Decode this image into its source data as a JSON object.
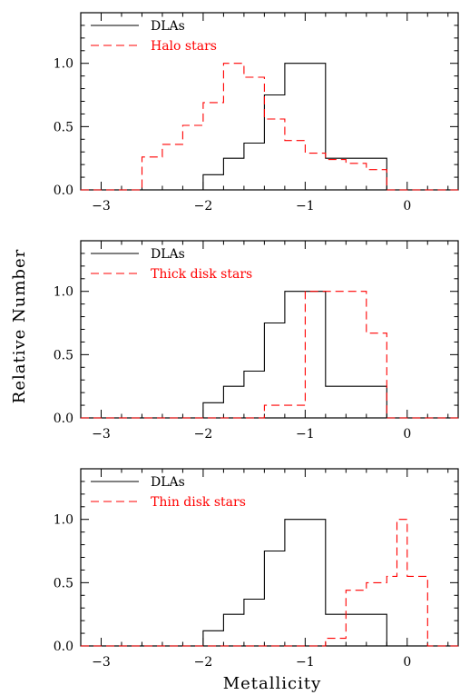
{
  "chart_data": {
    "type": "histogram",
    "ylabel": "Relative Number",
    "xlabel": "Metallicity",
    "xlim": [
      -3.2,
      0.5
    ],
    "ylim": [
      0,
      1.4
    ],
    "x_ticks": [
      -3,
      -2,
      -1,
      0
    ],
    "x_tick_labels": [
      "−3",
      "−2",
      "−1",
      "0"
    ],
    "y_ticks": [
      0,
      0.5,
      1.0
    ],
    "y_tick_labels": [
      "0.0",
      "0.5",
      "1.0"
    ],
    "legend_position": "top-left",
    "colors": {
      "dlas": "#000000",
      "stars": "#ff0000"
    },
    "panels": [
      {
        "series": [
          {
            "name": "DLAs",
            "style": "solid",
            "color": "#000000",
            "bin_edges": [
              -3.2,
              -2.0,
              -1.8,
              -1.6,
              -1.4,
              -1.2,
              -1.0,
              -0.8,
              -0.6,
              -0.4,
              -0.2,
              0.5
            ],
            "values": [
              0,
              0.12,
              0.25,
              0.37,
              0.75,
              1.0,
              1.0,
              0.25,
              0.25,
              0.25,
              0
            ]
          },
          {
            "name": "Halo stars",
            "style": "dashed",
            "color": "#ff0000",
            "bin_edges": [
              -3.2,
              -2.6,
              -2.4,
              -2.2,
              -2.0,
              -1.8,
              -1.6,
              -1.4,
              -1.2,
              -1.0,
              -0.8,
              -0.6,
              -0.4,
              -0.2,
              0.5
            ],
            "values": [
              0,
              0.26,
              0.36,
              0.51,
              0.69,
              1.0,
              0.89,
              0.56,
              0.39,
              0.29,
              0.24,
              0.21,
              0.16,
              0
            ]
          }
        ]
      },
      {
        "series": [
          {
            "name": "DLAs",
            "style": "solid",
            "color": "#000000",
            "bin_edges": [
              -3.2,
              -2.0,
              -1.8,
              -1.6,
              -1.4,
              -1.2,
              -1.0,
              -0.8,
              -0.6,
              -0.4,
              -0.2,
              0.5
            ],
            "values": [
              0,
              0.12,
              0.25,
              0.37,
              0.75,
              1.0,
              1.0,
              0.25,
              0.25,
              0.25,
              0
            ]
          },
          {
            "name": "Thick disk stars",
            "style": "dashed",
            "color": "#ff0000",
            "bin_edges": [
              -3.2,
              -1.4,
              -1.0,
              -0.4,
              -0.2,
              0.5
            ],
            "values": [
              0,
              0.1,
              1.0,
              0.67,
              0
            ]
          }
        ]
      },
      {
        "series": [
          {
            "name": "DLAs",
            "style": "solid",
            "color": "#000000",
            "bin_edges": [
              -3.2,
              -2.0,
              -1.8,
              -1.6,
              -1.4,
              -1.2,
              -1.0,
              -0.8,
              -0.6,
              -0.4,
              -0.2,
              0.5
            ],
            "values": [
              0,
              0.12,
              0.25,
              0.37,
              0.75,
              1.0,
              1.0,
              0.25,
              0.25,
              0.25,
              0
            ]
          },
          {
            "name": "Thin disk stars",
            "style": "dashed",
            "color": "#ff0000",
            "bin_edges": [
              -3.2,
              -0.8,
              -0.6,
              -0.4,
              -0.2,
              -0.1,
              0.0,
              0.2,
              0.5
            ],
            "values": [
              0,
              0.06,
              0.44,
              0.5,
              0.55,
              1.0,
              0.55,
              0
            ]
          }
        ]
      }
    ]
  }
}
